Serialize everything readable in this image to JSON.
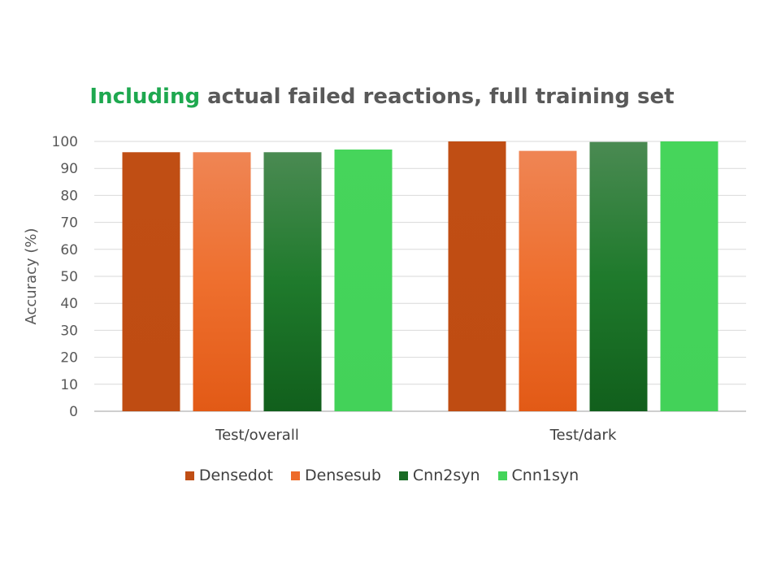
{
  "chart_data": {
    "type": "bar",
    "title": {
      "accent": "Including",
      "rest": "actual failed reactions, full training set"
    },
    "xlabel": "",
    "ylabel": "Accuracy (%)",
    "ylim": [
      0,
      100
    ],
    "yticks": [
      0,
      10,
      20,
      30,
      40,
      50,
      60,
      70,
      80,
      90,
      100
    ],
    "grid": true,
    "legend_position": "bottom",
    "categories": [
      "Test/overall",
      "Test/dark"
    ],
    "series": [
      {
        "name": "Densedot",
        "values": [
          96,
          100
        ],
        "color": "#c04e14"
      },
      {
        "name": "Densesub",
        "values": [
          96,
          96.5
        ],
        "color": "#ed6b2a"
      },
      {
        "name": "Cnn2syn",
        "values": [
          96,
          99.8
        ],
        "color": "#1a6b26"
      },
      {
        "name": "Cnn1syn",
        "values": [
          97,
          100
        ],
        "color": "#44d45a"
      }
    ]
  }
}
